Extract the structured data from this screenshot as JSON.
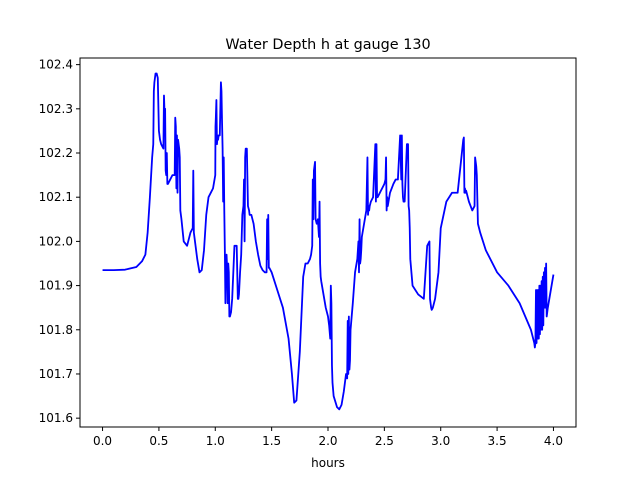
{
  "chart_data": {
    "type": "line",
    "title": "Water Depth h at gauge 130",
    "xlabel": "hours",
    "ylabel": "",
    "xlim": [
      -0.2,
      4.2
    ],
    "ylim": [
      101.58,
      102.415
    ],
    "xticks": [
      0.0,
      0.5,
      1.0,
      1.5,
      2.0,
      2.5,
      3.0,
      3.5,
      4.0
    ],
    "xtick_labels": [
      "0.0",
      "0.5",
      "1.0",
      "1.5",
      "2.0",
      "2.5",
      "3.0",
      "3.5",
      "4.0"
    ],
    "yticks": [
      101.6,
      101.7,
      101.8,
      101.9,
      102.0,
      102.1,
      102.2,
      102.3,
      102.4
    ],
    "ytick_labels": [
      "101.6",
      "101.7",
      "101.8",
      "101.9",
      "102.0",
      "102.1",
      "102.2",
      "102.3",
      "102.4"
    ],
    "grid": false,
    "color": "#0000ff",
    "series": [
      {
        "x": [
          0.0,
          0.1,
          0.2,
          0.3,
          0.35,
          0.38,
          0.4,
          0.42,
          0.44,
          0.45,
          0.455,
          0.46,
          0.47,
          0.48,
          0.49,
          0.5,
          0.51,
          0.52,
          0.54,
          0.545,
          0.55,
          0.555,
          0.56,
          0.565,
          0.57,
          0.575,
          0.58,
          0.6,
          0.62,
          0.64,
          0.645,
          0.65,
          0.655,
          0.66,
          0.665,
          0.67,
          0.675,
          0.68,
          0.685,
          0.69,
          0.7,
          0.72,
          0.75,
          0.78,
          0.8,
          0.805,
          0.81,
          0.815,
          0.82,
          0.84,
          0.86,
          0.88,
          0.9,
          0.92,
          0.94,
          0.96,
          0.98,
          1.0,
          1.002,
          1.005,
          1.01,
          1.015,
          1.02,
          1.025,
          1.03,
          1.04,
          1.05,
          1.055,
          1.06,
          1.065,
          1.07,
          1.075,
          1.08,
          1.085,
          1.09,
          1.095,
          1.1,
          1.105,
          1.11,
          1.115,
          1.12,
          1.125,
          1.13,
          1.135,
          1.14,
          1.15,
          1.16,
          1.17,
          1.18,
          1.19,
          1.2,
          1.205,
          1.21,
          1.22,
          1.23,
          1.24,
          1.25,
          1.255,
          1.26,
          1.265,
          1.27,
          1.28,
          1.29,
          1.3,
          1.305,
          1.31,
          1.315,
          1.32,
          1.33,
          1.34,
          1.36,
          1.38,
          1.4,
          1.42,
          1.44,
          1.45,
          1.455,
          1.46,
          1.465,
          1.47,
          1.475,
          1.48,
          1.5,
          1.55,
          1.6,
          1.65,
          1.68,
          1.7,
          1.72,
          1.75,
          1.78,
          1.8,
          1.82,
          1.84,
          1.85,
          1.86,
          1.865,
          1.87,
          1.875,
          1.88,
          1.885,
          1.89,
          1.9,
          1.91,
          1.915,
          1.92,
          1.925,
          1.93,
          1.935,
          1.94,
          1.96,
          1.98,
          2.0,
          2.01,
          2.02,
          2.025,
          2.03,
          2.035,
          2.04,
          2.05,
          2.08,
          2.1,
          2.12,
          2.14,
          2.16,
          2.17,
          2.175,
          2.18,
          2.185,
          2.19,
          2.195,
          2.2,
          2.22,
          2.24,
          2.26,
          2.27,
          2.275,
          2.28,
          2.285,
          2.29,
          2.295,
          2.3,
          2.32,
          2.34,
          2.35,
          2.355,
          2.36,
          2.365,
          2.37,
          2.38,
          2.4,
          2.42,
          2.425,
          2.43,
          2.435,
          2.44,
          2.46,
          2.48,
          2.5,
          2.51,
          2.515,
          2.52,
          2.525,
          2.53,
          2.55,
          2.58,
          2.6,
          2.62,
          2.64,
          2.65,
          2.655,
          2.66,
          2.665,
          2.67,
          2.68,
          2.7,
          2.71,
          2.715,
          2.72,
          2.725,
          2.73,
          2.75,
          2.8,
          2.85,
          2.88,
          2.9,
          2.905,
          2.91,
          2.915,
          2.92,
          2.93,
          2.95,
          2.98,
          3.0,
          3.05,
          3.1,
          3.15,
          3.2,
          3.205,
          3.21,
          3.215,
          3.22,
          3.225,
          3.23,
          3.25,
          3.28,
          3.3,
          3.305,
          3.31,
          3.315,
          3.32,
          3.33,
          3.34,
          3.35,
          3.4,
          3.5,
          3.6,
          3.7,
          3.75,
          3.8,
          3.82,
          3.83,
          3.835,
          3.84,
          3.845,
          3.85,
          3.855,
          3.86,
          3.865,
          3.87,
          3.875,
          3.88,
          3.885,
          3.89,
          3.895,
          3.9,
          3.905,
          3.91,
          3.915,
          3.92,
          3.925,
          3.93,
          3.935,
          3.94,
          3.95,
          3.97,
          4.0
        ],
        "y": [
          101.935,
          101.935,
          101.936,
          101.942,
          101.955,
          101.97,
          102.02,
          102.1,
          102.19,
          102.22,
          102.34,
          102.36,
          102.38,
          102.38,
          102.37,
          102.25,
          102.23,
          102.22,
          102.21,
          102.33,
          102.29,
          102.3,
          102.16,
          102.15,
          102.2,
          102.13,
          102.13,
          102.14,
          102.15,
          102.15,
          102.28,
          102.26,
          102.12,
          102.24,
          102.11,
          102.23,
          102.22,
          102.21,
          102.19,
          102.07,
          102.05,
          102.0,
          101.99,
          102.02,
          102.03,
          102.16,
          102.02,
          102.01,
          102.0,
          101.96,
          101.93,
          101.935,
          101.98,
          102.06,
          102.1,
          102.11,
          102.12,
          102.15,
          102.26,
          102.28,
          102.32,
          102.22,
          102.24,
          102.23,
          102.24,
          102.24,
          102.36,
          102.34,
          102.27,
          102.21,
          102.09,
          102.19,
          102.07,
          101.98,
          101.86,
          101.96,
          101.97,
          101.94,
          101.86,
          101.95,
          101.93,
          101.83,
          101.83,
          101.835,
          101.84,
          101.87,
          101.93,
          101.99,
          101.99,
          101.99,
          101.87,
          101.87,
          101.88,
          101.93,
          101.97,
          102.06,
          102.08,
          102.14,
          102.0,
          102.19,
          102.21,
          102.21,
          102.08,
          102.07,
          102.06,
          102.06,
          102.06,
          102.06,
          102.05,
          102.04,
          102.0,
          101.97,
          101.945,
          101.935,
          101.93,
          101.93,
          101.93,
          102.05,
          101.96,
          102.06,
          101.94,
          101.94,
          101.93,
          101.89,
          101.85,
          101.78,
          101.7,
          101.635,
          101.64,
          101.75,
          101.92,
          101.95,
          101.95,
          101.96,
          101.97,
          101.99,
          102.14,
          102.05,
          102.16,
          102.17,
          102.18,
          102.05,
          102.04,
          102.05,
          102.03,
          102.01,
          102.09,
          101.95,
          101.92,
          101.91,
          101.88,
          101.85,
          101.83,
          101.81,
          101.78,
          101.9,
          101.86,
          101.72,
          101.68,
          101.65,
          101.625,
          101.62,
          101.63,
          101.66,
          101.7,
          101.69,
          101.82,
          101.7,
          101.83,
          101.71,
          101.73,
          101.8,
          101.86,
          101.93,
          101.96,
          102.0,
          101.93,
          102.05,
          101.95,
          101.96,
          101.98,
          102.01,
          102.04,
          102.07,
          102.19,
          102.06,
          102.08,
          102.07,
          102.08,
          102.09,
          102.1,
          102.22,
          102.09,
          102.22,
          102.1,
          102.1,
          102.11,
          102.12,
          102.13,
          102.14,
          102.19,
          102.07,
          102.1,
          102.08,
          102.11,
          102.13,
          102.14,
          102.14,
          102.24,
          102.14,
          102.24,
          102.13,
          102.1,
          102.09,
          102.09,
          102.22,
          102.22,
          102.08,
          102.07,
          102.03,
          101.96,
          101.9,
          101.88,
          101.87,
          101.99,
          102.0,
          101.87,
          101.86,
          101.85,
          101.845,
          101.85,
          101.87,
          101.93,
          102.03,
          102.09,
          102.11,
          102.11,
          102.23,
          102.235,
          102.11,
          102.12,
          102.11,
          102.115,
          102.11,
          102.09,
          102.07,
          102.08,
          102.19,
          102.18,
          102.17,
          102.15,
          102.04,
          102.03,
          102.02,
          101.98,
          101.93,
          101.9,
          101.86,
          101.83,
          101.8,
          101.78,
          101.77,
          101.76,
          101.77,
          101.89,
          101.77,
          101.89,
          101.78,
          101.89,
          101.78,
          101.9,
          101.79,
          101.9,
          101.8,
          101.91,
          101.8,
          101.92,
          101.81,
          101.93,
          101.85,
          101.94,
          101.85,
          101.95,
          101.83,
          101.85,
          101.88,
          101.925
        ]
      }
    ]
  }
}
